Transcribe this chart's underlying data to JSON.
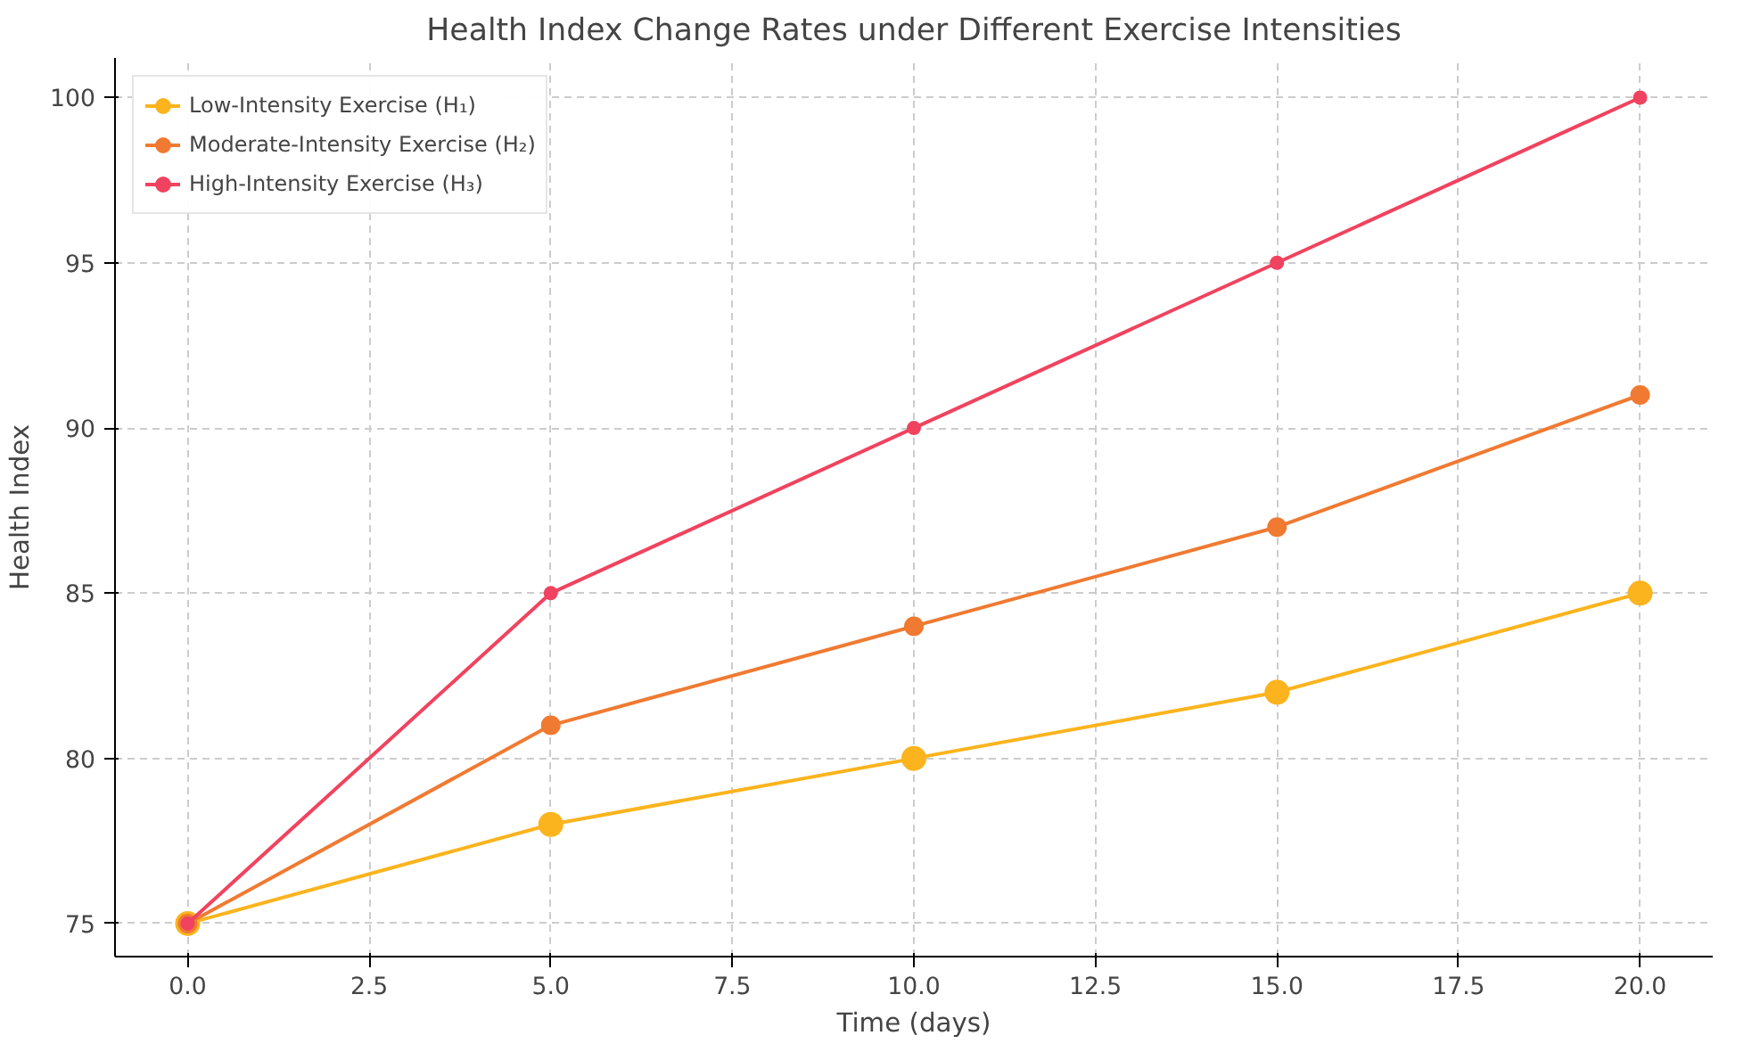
{
  "chart_data": {
    "type": "line",
    "title": "Health Index Change Rates under Different Exercise Intensities",
    "xlabel": "Time (days)",
    "ylabel": "Health Index",
    "x": [
      0,
      5,
      10,
      15,
      20
    ],
    "series": [
      {
        "name": "Low-Intensity Exercise (H₁)",
        "color": "#fbb41e",
        "values": [
          75,
          78,
          80,
          82,
          85
        ]
      },
      {
        "name": "Moderate-Intensity Exercise (H₂)",
        "color": "#f07a32",
        "values": [
          75,
          81,
          84,
          87,
          91
        ]
      },
      {
        "name": "High-Intensity Exercise (H₃)",
        "color": "#f0435f",
        "values": [
          75,
          85,
          90,
          95,
          100
        ]
      }
    ],
    "xlim": [
      -1,
      21
    ],
    "ylim": [
      74,
      101.2
    ],
    "xticks": [
      {
        "value": 0,
        "label": "0.0"
      },
      {
        "value": 2.5,
        "label": "2.5"
      },
      {
        "value": 5,
        "label": "5.0"
      },
      {
        "value": 7.5,
        "label": "7.5"
      },
      {
        "value": 10,
        "label": "10.0"
      },
      {
        "value": 12.5,
        "label": "12.5"
      },
      {
        "value": 15,
        "label": "15.0"
      },
      {
        "value": 17.5,
        "label": "17.5"
      },
      {
        "value": 20,
        "label": "20.0"
      }
    ],
    "yticks": [
      75,
      80,
      85,
      90,
      95,
      100
    ],
    "grid": true,
    "legend": "top left",
    "marker": "circle",
    "line_style": "solid"
  }
}
